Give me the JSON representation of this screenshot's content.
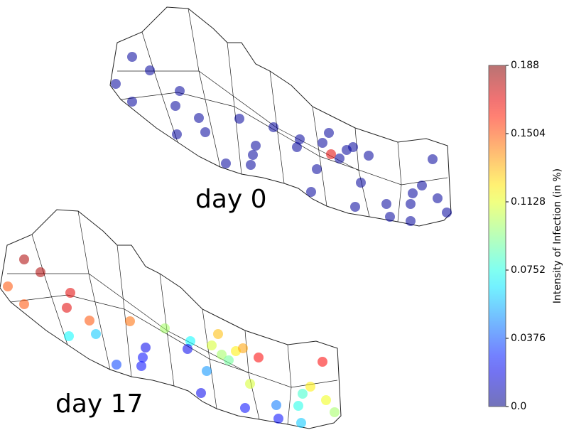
{
  "chart_data": {
    "type": "map",
    "colormap": "jet",
    "colorbar": {
      "label": "Intensity of Infection (in %)",
      "lim": [
        0,
        0.188
      ],
      "ticks": [
        {
          "value": 0,
          "label": "0.0"
        },
        0.0376,
        0.0752,
        0.1128,
        0.1504,
        0.188
      ]
    },
    "panels": [
      {
        "title": "day 0",
        "values": [
          0.005,
          0.005,
          0.005,
          0.005,
          0.005,
          0.005,
          0.005,
          0.005,
          0.005,
          0.005,
          0.005,
          0.005,
          0.005,
          0.005,
          0.005,
          0.005,
          0.005,
          0.005,
          0.005,
          0.17,
          0.005,
          0.005,
          0.005,
          0.005,
          0.005,
          0.005,
          0.005,
          0.005,
          0.005,
          0.005,
          0.005,
          0.005,
          0.005,
          0.005,
          0.005,
          0.005,
          0.005
        ]
      },
      {
        "title": "day 17",
        "values": [
          0.18,
          0.18,
          0.15,
          0.15,
          0.17,
          0.17,
          0.15,
          0.145,
          0.1,
          0.07,
          0.06,
          0.07,
          0.13,
          0.02,
          0.02,
          0.11,
          0.1,
          0.09,
          0.12,
          0.135,
          0.165,
          0.165,
          0.025,
          0.035,
          0.025,
          0.05,
          0.11,
          0.12,
          0.02,
          0.08,
          0.115,
          0.045,
          0.075,
          0.025,
          0.1,
          0.025,
          0.06
        ]
      }
    ]
  }
}
